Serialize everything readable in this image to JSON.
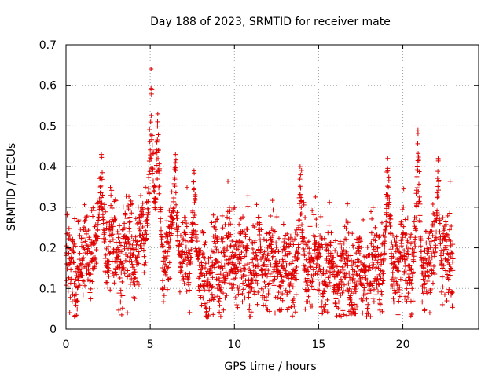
{
  "chart_data": {
    "type": "scatter",
    "title": "Day 188 of 2023, SRMTID for receiver mate",
    "xlabel": "GPS time / hours",
    "ylabel": "SRMTID / TECUs",
    "xlim": [
      0,
      24.5
    ],
    "ylim": [
      0,
      0.7
    ],
    "xticks": [
      0,
      5,
      10,
      15,
      20
    ],
    "xtick_labels": [
      "0",
      "5",
      "10",
      "15",
      "20"
    ],
    "yticks": [
      0,
      0.1,
      0.2,
      0.3,
      0.4,
      0.5,
      0.6,
      0.7
    ],
    "ytick_labels": [
      "0",
      "0.1",
      "0.2",
      "0.3",
      "0.4",
      "0.5",
      "0.6",
      "0.7"
    ],
    "grid": true,
    "marker": "plus",
    "color": "#e00000",
    "series": [
      {
        "name": "SRMTID",
        "x_range": [
          0,
          23.0
        ],
        "count": 2400,
        "seed": 188,
        "baseline": [
          [
            0,
            0.15
          ],
          [
            1,
            0.17
          ],
          [
            2,
            0.21
          ],
          [
            3,
            0.19
          ],
          [
            4,
            0.21
          ],
          [
            5,
            0.22
          ],
          [
            6,
            0.2
          ],
          [
            7,
            0.17
          ],
          [
            8,
            0.12
          ],
          [
            9,
            0.14
          ],
          [
            10,
            0.18
          ],
          [
            11,
            0.17
          ],
          [
            12,
            0.16
          ],
          [
            13,
            0.15
          ],
          [
            14,
            0.16
          ],
          [
            15,
            0.17
          ],
          [
            16,
            0.14
          ],
          [
            17,
            0.13
          ],
          [
            18,
            0.14
          ],
          [
            19,
            0.16
          ],
          [
            20,
            0.18
          ],
          [
            21,
            0.13
          ],
          [
            22,
            0.19
          ],
          [
            23,
            0.17
          ]
        ],
        "spread": 0.06,
        "bursts": [
          {
            "x": 2.1,
            "peak": 0.43,
            "width": 0.08
          },
          {
            "x": 5.05,
            "peak": 0.64,
            "width": 0.12
          },
          {
            "x": 5.45,
            "peak": 0.53,
            "width": 0.1
          },
          {
            "x": 6.5,
            "peak": 0.43,
            "width": 0.1
          },
          {
            "x": 7.6,
            "peak": 0.39,
            "width": 0.1
          },
          {
            "x": 13.9,
            "peak": 0.4,
            "width": 0.07
          },
          {
            "x": 19.1,
            "peak": 0.42,
            "width": 0.1
          },
          {
            "x": 20.9,
            "peak": 0.49,
            "width": 0.1
          },
          {
            "x": 22.1,
            "peak": 0.42,
            "width": 0.08
          }
        ]
      }
    ]
  }
}
